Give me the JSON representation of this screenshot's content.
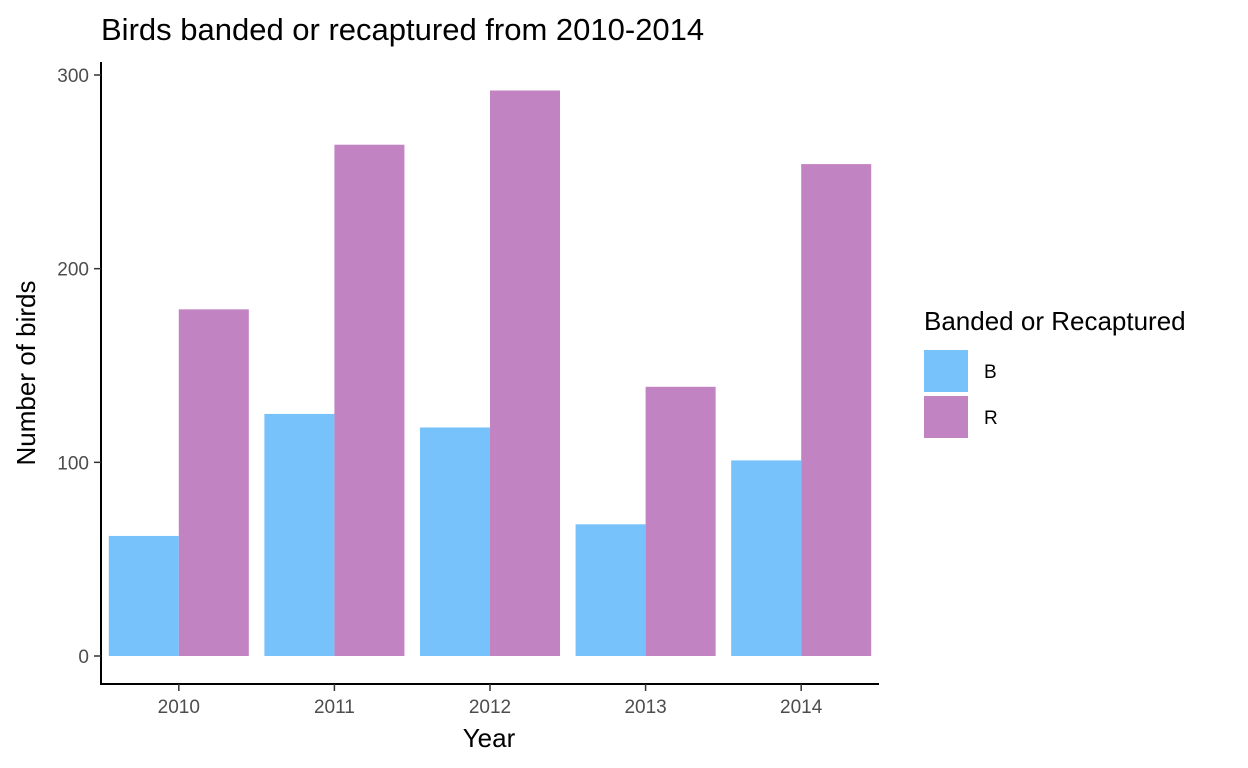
{
  "chart_data": {
    "type": "bar",
    "title": "Birds banded or recaptured from 2010-2014",
    "xlabel": "Year",
    "ylabel": "Number of birds",
    "categories": [
      "2010",
      "2011",
      "2012",
      "2013",
      "2014"
    ],
    "series": [
      {
        "name": "B",
        "color": "#77C2FA",
        "values": [
          62,
          125,
          118,
          68,
          101
        ]
      },
      {
        "name": "R",
        "color": "#C283C3",
        "values": [
          179,
          264,
          292,
          139,
          254
        ]
      }
    ],
    "ylim": [
      0,
      300
    ],
    "yticks": [
      "0",
      "100",
      "200",
      "300"
    ],
    "grid": false,
    "legend": {
      "title": "Banded or Recaptured",
      "position": "right"
    }
  }
}
